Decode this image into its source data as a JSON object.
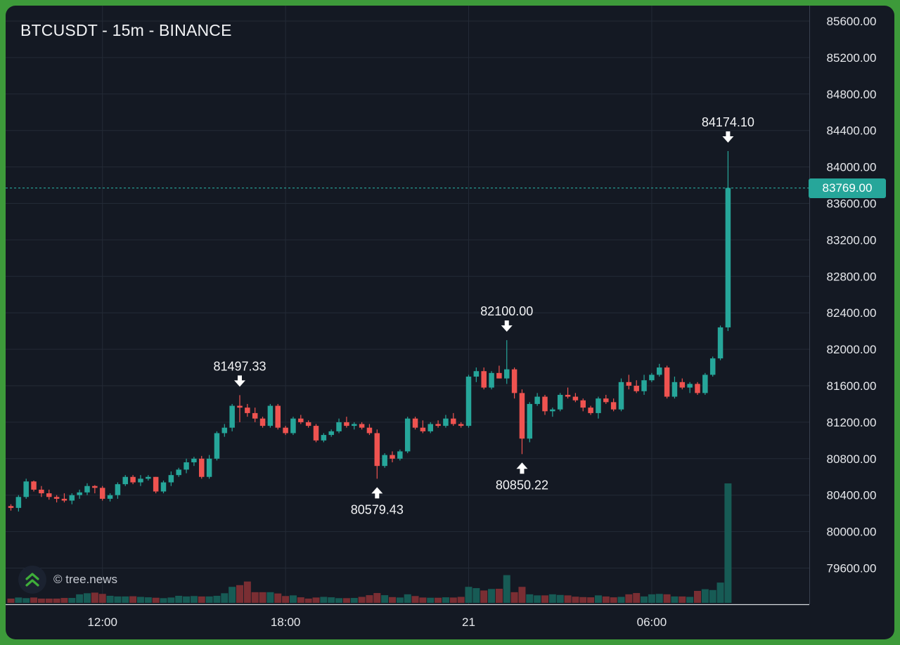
{
  "chart_data": {
    "type": "candlestick",
    "title": "BTCUSDT - 15m - BINANCE",
    "symbol": "BTCUSDT",
    "interval": "15m",
    "exchange": "BINANCE",
    "y_ticks": [
      "85600.00",
      "85200.00",
      "84800.00",
      "84400.00",
      "84000.00",
      "83600.00",
      "83200.00",
      "82800.00",
      "82400.00",
      "82000.00",
      "81600.00",
      "81200.00",
      "80800.00",
      "80400.00",
      "80000.00",
      "79600.00"
    ],
    "ylim": [
      79400,
      85730
    ],
    "x_ticks": [
      {
        "label": "12:00",
        "bar": 12
      },
      {
        "label": "18:00",
        "bar": 36
      },
      {
        "label": "21",
        "bar": 60
      },
      {
        "label": "06:00",
        "bar": 84
      }
    ],
    "last_price": "83769.00",
    "last_price_value": 83769.0,
    "colors": {
      "up": "#26a69a",
      "down": "#ef5350",
      "up_volume": "#175b55",
      "down_volume": "#7a2e33",
      "grid": "#232a36",
      "last_price_line": "#26a69a"
    },
    "grid": true,
    "annotations": [
      {
        "text": "81497.33",
        "value": 81497.33,
        "bar": 30,
        "type": "high"
      },
      {
        "text": "80579.43",
        "value": 80579.43,
        "bar": 48,
        "type": "low"
      },
      {
        "text": "82100.00",
        "value": 82100.0,
        "bar": 65,
        "type": "high"
      },
      {
        "text": "80850.22",
        "value": 80850.22,
        "bar": 67,
        "type": "low"
      },
      {
        "text": "84174.10",
        "value": 84174.1,
        "bar": 94,
        "type": "high"
      }
    ],
    "candles": [
      [
        80280,
        80300,
        80230,
        80260
      ],
      [
        80260,
        80400,
        80220,
        80380
      ],
      [
        80380,
        80580,
        80360,
        80550
      ],
      [
        80550,
        80560,
        80440,
        80460
      ],
      [
        80460,
        80500,
        80380,
        80420
      ],
      [
        80420,
        80460,
        80350,
        80380
      ],
      [
        80380,
        80400,
        80320,
        80360
      ],
      [
        80360,
        80420,
        80320,
        80340
      ],
      [
        80340,
        80420,
        80300,
        80400
      ],
      [
        80400,
        80460,
        80360,
        80430
      ],
      [
        80430,
        80530,
        80400,
        80500
      ],
      [
        80500,
        80510,
        80420,
        80480
      ],
      [
        80480,
        80500,
        80340,
        80360
      ],
      [
        80360,
        80420,
        80330,
        80400
      ],
      [
        80400,
        80540,
        80360,
        80520
      ],
      [
        80520,
        80620,
        80500,
        80600
      ],
      [
        80600,
        80620,
        80520,
        80540
      ],
      [
        80540,
        80620,
        80500,
        80580
      ],
      [
        80580,
        80620,
        80560,
        80600
      ],
      [
        80600,
        80600,
        80420,
        80440
      ],
      [
        80440,
        80560,
        80420,
        80540
      ],
      [
        80540,
        80660,
        80500,
        80620
      ],
      [
        80620,
        80700,
        80600,
        80680
      ],
      [
        80680,
        80800,
        80640,
        80760
      ],
      [
        80760,
        80820,
        80720,
        80800
      ],
      [
        80800,
        80830,
        80580,
        80600
      ],
      [
        80600,
        80840,
        80580,
        80800
      ],
      [
        80800,
        81100,
        80780,
        81080
      ],
      [
        81080,
        81180,
        81040,
        81140
      ],
      [
        81140,
        81400,
        81100,
        81380
      ],
      [
        81380,
        81497,
        81200,
        81360
      ],
      [
        81360,
        81400,
        81260,
        81300
      ],
      [
        81300,
        81360,
        81200,
        81240
      ],
      [
        81240,
        81260,
        81140,
        81160
      ],
      [
        81160,
        81400,
        81140,
        81380
      ],
      [
        81380,
        81400,
        81120,
        81140
      ],
      [
        81140,
        81160,
        81060,
        81080
      ],
      [
        81080,
        81260,
        81060,
        81240
      ],
      [
        81240,
        81280,
        81180,
        81200
      ],
      [
        81200,
        81220,
        81140,
        81160
      ],
      [
        81160,
        81180,
        80980,
        81000
      ],
      [
        81000,
        81080,
        80980,
        81060
      ],
      [
        81060,
        81120,
        81040,
        81100
      ],
      [
        81100,
        81240,
        81080,
        81200
      ],
      [
        81200,
        81260,
        81140,
        81160
      ],
      [
        81160,
        81200,
        81120,
        81180
      ],
      [
        81180,
        81200,
        81120,
        81140
      ],
      [
        81140,
        81180,
        81060,
        81080
      ],
      [
        81080,
        81120,
        80580,
        80720
      ],
      [
        80720,
        80860,
        80700,
        80840
      ],
      [
        80840,
        80880,
        80760,
        80800
      ],
      [
        80800,
        80900,
        80780,
        80880
      ],
      [
        80880,
        81260,
        80860,
        81240
      ],
      [
        81240,
        81260,
        81120,
        81140
      ],
      [
        81140,
        81220,
        81080,
        81100
      ],
      [
        81100,
        81200,
        81080,
        81180
      ],
      [
        81180,
        81220,
        81140,
        81160
      ],
      [
        81160,
        81280,
        81140,
        81240
      ],
      [
        81240,
        81300,
        81160,
        81180
      ],
      [
        81180,
        81200,
        81140,
        81160
      ],
      [
        81160,
        81720,
        81140,
        81700
      ],
      [
        81700,
        81800,
        81640,
        81760
      ],
      [
        81760,
        81800,
        81560,
        81580
      ],
      [
        81580,
        81760,
        81560,
        81740
      ],
      [
        81740,
        81820,
        81680,
        81680
      ],
      [
        81680,
        82100,
        81620,
        81780
      ],
      [
        81780,
        81800,
        81460,
        81520
      ],
      [
        81520,
        81560,
        80850,
        81020
      ],
      [
        81020,
        81420,
        80980,
        81400
      ],
      [
        81400,
        81520,
        81380,
        81480
      ],
      [
        81480,
        81500,
        81280,
        81320
      ],
      [
        81320,
        81360,
        81260,
        81340
      ],
      [
        81340,
        81520,
        81320,
        81500
      ],
      [
        81500,
        81580,
        81460,
        81480
      ],
      [
        81480,
        81520,
        81420,
        81440
      ],
      [
        81440,
        81460,
        81320,
        81360
      ],
      [
        81360,
        81380,
        81280,
        81300
      ],
      [
        81300,
        81480,
        81240,
        81460
      ],
      [
        81460,
        81500,
        81400,
        81420
      ],
      [
        81420,
        81460,
        81320,
        81340
      ],
      [
        81340,
        81680,
        81320,
        81640
      ],
      [
        81640,
        81720,
        81560,
        81600
      ],
      [
        81600,
        81660,
        81520,
        81540
      ],
      [
        81540,
        81720,
        81500,
        81660
      ],
      [
        81660,
        81740,
        81640,
        81720
      ],
      [
        81720,
        81840,
        81700,
        81800
      ],
      [
        81800,
        81820,
        81460,
        81480
      ],
      [
        81480,
        81700,
        81460,
        81640
      ],
      [
        81640,
        81680,
        81560,
        81580
      ],
      [
        81580,
        81640,
        81520,
        81620
      ],
      [
        81620,
        81640,
        81500,
        81520
      ],
      [
        81520,
        81740,
        81500,
        81720
      ],
      [
        81720,
        81920,
        81700,
        81900
      ],
      [
        81900,
        82260,
        81880,
        82240
      ],
      [
        82240,
        84174,
        82200,
        83769
      ]
    ],
    "volumes": [
      2.0,
      2.5,
      2.2,
      2.5,
      2.0,
      2.0,
      2.0,
      2.3,
      2.3,
      4.0,
      4.5,
      4.8,
      4.2,
      3.3,
      3.0,
      3.0,
      3.1,
      2.8,
      2.6,
      2.4,
      2.2,
      2.5,
      3.3,
      3.0,
      3.2,
      3.0,
      3.0,
      3.3,
      4.5,
      7.5,
      8.3,
      10.0,
      5.0,
      5.0,
      5.0,
      4.4,
      3.2,
      3.5,
      2.6,
      2.0,
      2.5,
      2.8,
      2.6,
      2.2,
      2.2,
      2.3,
      2.8,
      3.6,
      4.6,
      3.6,
      2.7,
      2.5,
      4.0,
      3.2,
      2.5,
      2.4,
      2.4,
      2.6,
      2.5,
      2.8,
      7.5,
      6.9,
      5.8,
      6.5,
      6.6,
      13.0,
      5.0,
      7.5,
      4.0,
      3.5,
      3.5,
      4.0,
      3.7,
      3.5,
      2.9,
      2.7,
      2.6,
      3.5,
      3.0,
      2.6,
      2.8,
      4.0,
      4.6,
      3.0,
      4.0,
      4.2,
      4.0,
      3.0,
      3.0,
      2.8,
      5.6,
      6.4,
      6.0,
      9.5,
      56.0
    ]
  },
  "watermark": {
    "text": "© tree.news",
    "logo": "double-chevron-up-icon"
  }
}
